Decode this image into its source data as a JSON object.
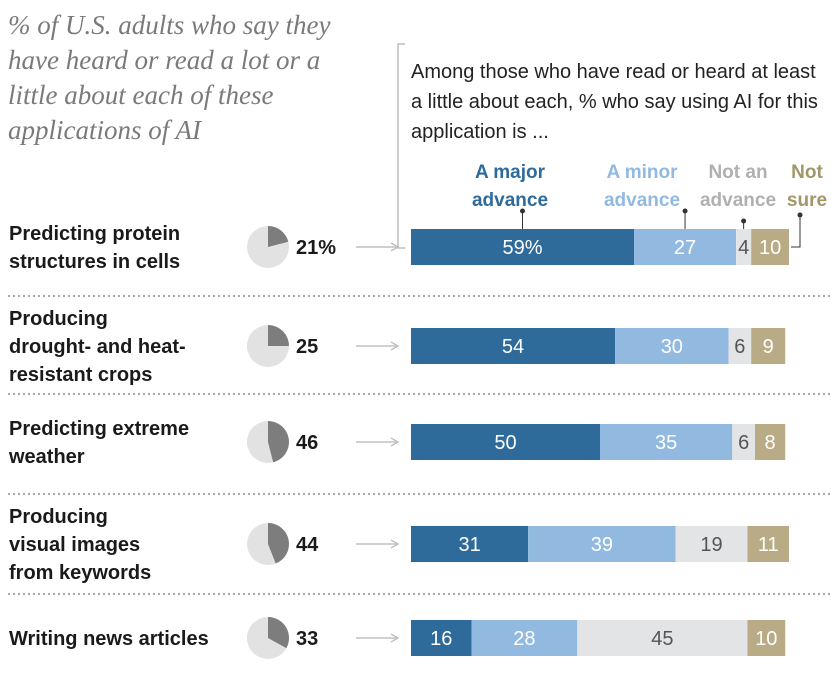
{
  "left_title": "% of U.S. adults who say they have heard or read a lot or a little about each of these applications of AI",
  "right_title": "Among those who have read or heard at least a little about each, % who say using AI for this application is ...",
  "chart_data": {
    "type": "bar",
    "stacked": true,
    "orientation": "horizontal",
    "categories": [
      [
        "Predicting protein",
        "structures in cells"
      ],
      [
        "Producing",
        "drought- and heat-",
        "resistant crops"
      ],
      [
        "Predicting extreme",
        "weather"
      ],
      [
        "Producing",
        "visual images",
        "from keywords"
      ],
      [
        "Writing news articles"
      ]
    ],
    "heard_percent": [
      21,
      25,
      46,
      44,
      33
    ],
    "heard_labels": [
      "21%",
      "25",
      "46",
      "44",
      "33"
    ],
    "series": [
      {
        "name": [
          "A major",
          "advance"
        ],
        "color": "#2e6b9b",
        "text_color": "#ffffff",
        "values": [
          59,
          54,
          50,
          31,
          16
        ],
        "labels": [
          "59%",
          "54",
          "50",
          "31",
          "16"
        ]
      },
      {
        "name": [
          "A minor",
          "advance"
        ],
        "color": "#92b9e0",
        "text_color": "#ffffff",
        "values": [
          27,
          30,
          35,
          39,
          28
        ],
        "labels": [
          "27",
          "30",
          "35",
          "39",
          "28"
        ]
      },
      {
        "name": [
          "Not an",
          "advance"
        ],
        "color": "#e3e4e6",
        "text_color": "#555555",
        "values": [
          4,
          6,
          6,
          19,
          45
        ],
        "labels": [
          "4",
          "6",
          "6",
          "19",
          "45"
        ]
      },
      {
        "name": [
          "Not",
          "sure"
        ],
        "color": "#b8ab86",
        "text_color": "#ffffff",
        "values": [
          10,
          9,
          8,
          11,
          10
        ],
        "labels": [
          "10",
          "9",
          "8",
          "11",
          "10"
        ]
      }
    ],
    "legend_colors": [
      "#2e6b9b",
      "#92b9e0",
      "#b0b0b0",
      "#a39669"
    ],
    "pie_colors": {
      "filled": "#7d7d7d",
      "empty": "#e2e2e2"
    },
    "xlim": [
      0,
      100
    ]
  }
}
